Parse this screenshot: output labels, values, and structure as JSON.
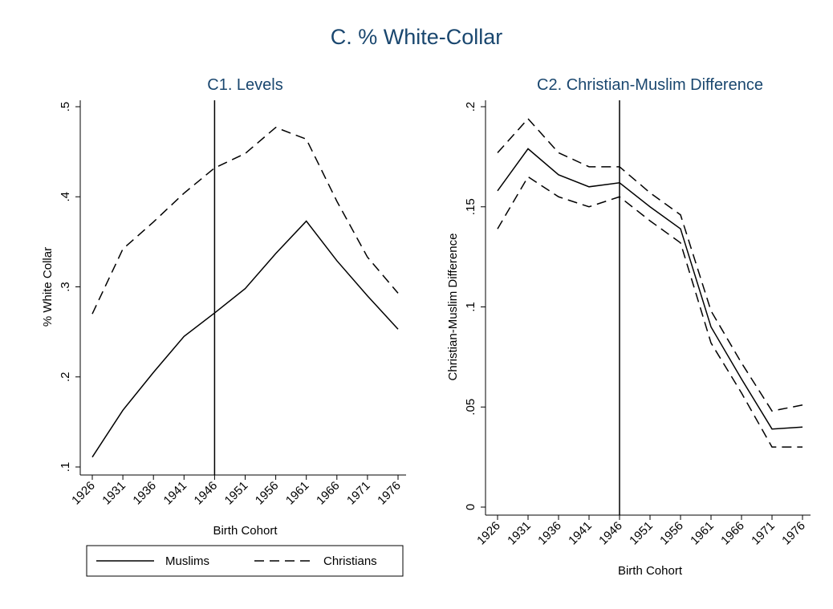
{
  "title": "C. % White-Collar",
  "chart_data": [
    {
      "type": "line",
      "title": "C1. Levels",
      "x_label": "Birth Cohort",
      "y_label": "% White Collar",
      "x": [
        1926,
        1931,
        1936,
        1941,
        1946,
        1951,
        1956,
        1961,
        1966,
        1971,
        1976
      ],
      "xlim": [
        1926,
        1976
      ],
      "xticks": [
        1926,
        1931,
        1936,
        1941,
        1946,
        1951,
        1956,
        1961,
        1966,
        1971,
        1976
      ],
      "ylim": [
        0.1,
        0.5
      ],
      "yticks": [
        {
          "value": 0.1,
          "label": ".1"
        },
        {
          "value": 0.2,
          "label": ".2"
        },
        {
          "value": 0.3,
          "label": ".3"
        },
        {
          "value": 0.4,
          "label": ".4"
        },
        {
          "value": 0.5,
          "label": ".5"
        }
      ],
      "xline": 1946,
      "legend": "bottom",
      "series": [
        {
          "name": "Muslims",
          "color": "#000000",
          "line_style": "solid",
          "values": [
            0.111,
            0.163,
            0.205,
            0.245,
            0.271,
            0.298,
            0.337,
            0.373,
            0.329,
            0.29,
            0.253
          ]
        },
        {
          "name": "Christians",
          "color": "#000000",
          "line_style": "dashed",
          "values": [
            0.27,
            0.342,
            0.372,
            0.404,
            0.432,
            0.448,
            0.477,
            0.464,
            0.395,
            0.333,
            0.293
          ]
        }
      ]
    },
    {
      "type": "line",
      "title": "C2. Christian-Muslim Difference",
      "x_label": "Birth Cohort",
      "y_label": "Christian-Muslim Difference",
      "x": [
        1926,
        1931,
        1936,
        1941,
        1946,
        1951,
        1956,
        1961,
        1966,
        1971,
        1976
      ],
      "xlim": [
        1926,
        1976
      ],
      "xticks": [
        1926,
        1931,
        1936,
        1941,
        1946,
        1951,
        1956,
        1961,
        1966,
        1971,
        1976
      ],
      "ylim": [
        0,
        0.2
      ],
      "yticks": [
        0,
        {
          "value": 0.05,
          "label": ".05"
        },
        {
          "value": 0.1,
          "label": ".1"
        },
        {
          "value": 0.15,
          "label": ".15"
        },
        {
          "value": 0.2,
          "label": ".2"
        }
      ],
      "xline": 1946,
      "series": [
        {
          "color": "#000000",
          "line_style": "solid",
          "values": [
            0.158,
            0.179,
            0.166,
            0.16,
            0.162,
            0.15,
            0.139,
            0.09,
            0.064,
            0.039,
            0.04
          ]
        },
        {
          "color": "#000000",
          "line_style": "dashed",
          "values": [
            0.177,
            0.194,
            0.177,
            0.17,
            0.17,
            0.157,
            0.146,
            0.098,
            0.072,
            0.048,
            0.051
          ]
        },
        {
          "color": "#000000",
          "line_style": "dashed",
          "values": [
            0.139,
            0.165,
            0.155,
            0.15,
            0.155,
            0.143,
            0.132,
            0.082,
            0.057,
            0.03,
            0.03
          ]
        }
      ]
    }
  ]
}
